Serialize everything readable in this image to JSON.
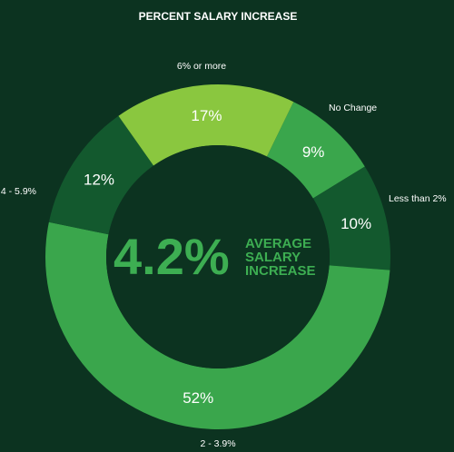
{
  "chart_data": {
    "type": "pie",
    "title": "PERCENT SALARY INCREASE",
    "categories": [
      "No Change",
      "Less than 2%",
      "2 - 3.9%",
      "4 - 5.9%",
      "6% or more"
    ],
    "values": [
      9,
      10,
      52,
      12,
      17
    ],
    "value_labels": [
      "9%",
      "10%",
      "52%",
      "12%",
      "17%"
    ],
    "center_value": "4.2%",
    "center_text": [
      "AVERAGE",
      "SALARY",
      "INCREASE"
    ]
  },
  "colors": {
    "background": "#0c3320",
    "hole": "#0c3320",
    "slices": [
      "#3aa64c",
      "#13592e",
      "#3aa64c",
      "#13592e",
      "#8ac73f"
    ],
    "accent_text": "#3dae52"
  }
}
